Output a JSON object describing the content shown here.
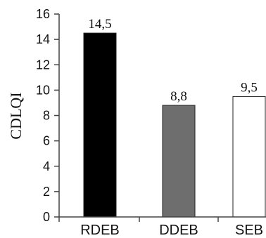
{
  "chart_data": {
    "type": "bar",
    "title": "",
    "xlabel": "",
    "ylabel": "CDLQI",
    "categories": [
      "RDEB",
      "DDEB",
      "SEB"
    ],
    "values": [
      14.5,
      8.8,
      9.5
    ],
    "data_labels": [
      "14,5",
      "8,8",
      "9,5"
    ],
    "bar_colors": [
      "#000000",
      "#6e6e6e",
      "#ffffff"
    ],
    "bar_stroke": "#222222",
    "ylim": [
      0,
      16
    ],
    "yticks": [
      0,
      2,
      4,
      6,
      8,
      10,
      12,
      14,
      16
    ],
    "grid": false,
    "legend": "none"
  }
}
